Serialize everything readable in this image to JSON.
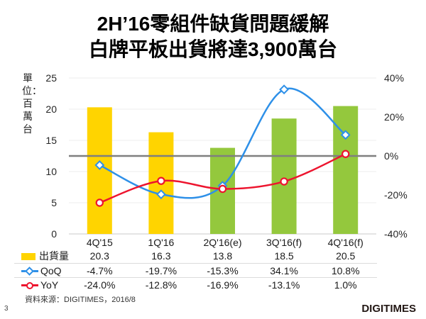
{
  "title": {
    "line1": "2H’16零組件缺貨問題緩解",
    "line2": "白牌平板出貨將達3,900萬台"
  },
  "chart_data": {
    "type": "combo-bar-line",
    "categories": [
      "4Q'15",
      "1Q'16",
      "2Q'16(e)",
      "3Q'16(f)",
      "4Q'16(f)"
    ],
    "series": [
      {
        "name": "出貨量",
        "type": "bar",
        "axis": "left",
        "values": [
          20.3,
          16.3,
          13.8,
          18.5,
          20.5
        ],
        "bar_colors": [
          "#FFD400",
          "#FFD400",
          "#94C83D",
          "#94C83D",
          "#94C83D"
        ],
        "legend_color": "#FFD400"
      },
      {
        "name": "QoQ",
        "type": "line",
        "axis": "right",
        "marker": "diamond",
        "values": [
          -4.7,
          -19.7,
          -15.3,
          34.1,
          10.8
        ],
        "color": "#2E90E8"
      },
      {
        "name": "YoY",
        "type": "line",
        "axis": "right",
        "marker": "circle",
        "values": [
          -24.0,
          -12.8,
          -16.9,
          -13.1,
          1.0
        ],
        "color": "#ED142E"
      }
    ],
    "ylabel": "單位：百萬台",
    "left_axis": {
      "min": 0,
      "max": 25,
      "ticks": [
        "25",
        "20",
        "15",
        "10",
        "5",
        "0"
      ]
    },
    "right_axis": {
      "min": -40,
      "max": 40,
      "ticks": [
        "40%",
        "20%",
        "0%",
        "-20%",
        "-40%"
      ]
    },
    "grid": true,
    "zero_line_color": "#7F7F7F",
    "gridline_color": "#ECECEC",
    "axis_line_color": "#C9C9C9"
  },
  "table": {
    "header": [
      "4Q'15",
      "1Q'16",
      "2Q'16(e)",
      "3Q'16(f)",
      "4Q'16(f)"
    ],
    "rows": [
      {
        "label": "出貨量",
        "marker": "bar",
        "values": [
          "20.3",
          "16.3",
          "13.8",
          "18.5",
          "20.5"
        ]
      },
      {
        "label": "QoQ",
        "marker": "diamond",
        "values": [
          "-4.7%",
          "-19.7%",
          "-15.3%",
          "34.1%",
          "10.8%"
        ]
      },
      {
        "label": "YoY",
        "marker": "circle",
        "values": [
          "-24.0%",
          "-12.8%",
          "-16.9%",
          "-13.1%",
          "1.0%"
        ]
      }
    ]
  },
  "footer": {
    "source": "資料來源：DIGITIMES，2016/8",
    "page": "3",
    "logo": "DIGITIMES"
  }
}
